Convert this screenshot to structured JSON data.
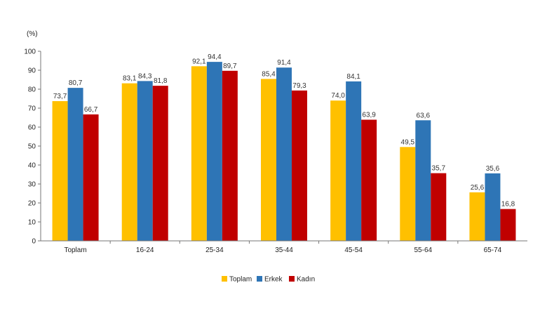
{
  "chart_data": {
    "type": "bar",
    "unit_label": "(%)",
    "categories": [
      "Toplam",
      "16-24",
      "25-34",
      "35-44",
      "45-54",
      "55-64",
      "65-74"
    ],
    "series": [
      {
        "name": "Toplam",
        "color": "#FFC000",
        "values": [
          73.7,
          83.1,
          92.1,
          85.4,
          74.0,
          49.5,
          25.6
        ],
        "labels": [
          "73,7",
          "83,1",
          "92,1",
          "85,4",
          "74,0",
          "49,5",
          "25,6"
        ]
      },
      {
        "name": "Erkek",
        "color": "#2E75B6",
        "values": [
          80.7,
          84.3,
          94.4,
          91.4,
          84.1,
          63.6,
          35.6
        ],
        "labels": [
          "80,7",
          "84,3",
          "94,4",
          "91,4",
          "84,1",
          "63,6",
          "35,6"
        ]
      },
      {
        "name": "Kadın",
        "color": "#C00000",
        "values": [
          66.7,
          81.8,
          89.7,
          79.3,
          63.9,
          35.7,
          16.8
        ],
        "labels": [
          "66,7",
          "81,8",
          "89,7",
          "79,3",
          "63,9",
          "35,7",
          "16,8"
        ]
      }
    ],
    "ylim": [
      0,
      100
    ],
    "yticks": [
      0,
      10,
      20,
      30,
      40,
      50,
      60,
      70,
      80,
      90,
      100
    ],
    "grid": false,
    "legend_position": "bottom-center"
  }
}
